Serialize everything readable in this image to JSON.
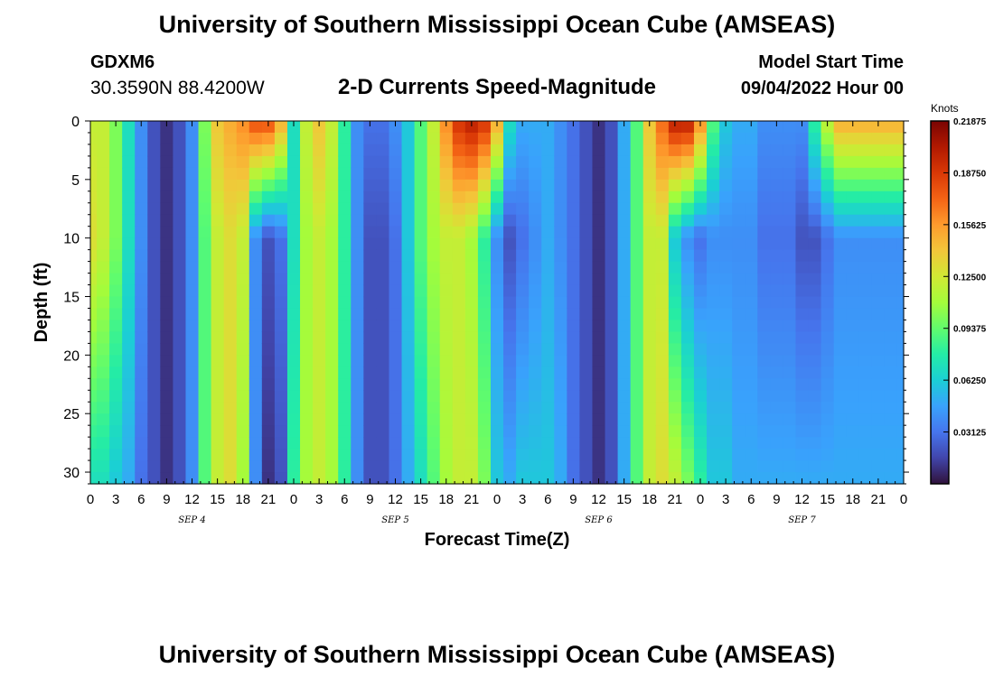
{
  "header": {
    "title": "University of Southern Mississippi Ocean Cube (AMSEAS)",
    "station_id": "GDXM6",
    "coords": "30.3590N  88.4200W",
    "subtitle": "2-D Currents Speed-Magnitude",
    "model_start_label": "Model Start Time",
    "model_start_value": "09/04/2022 Hour 00"
  },
  "footer": {
    "repeat_title": "University of Southern Mississippi Ocean Cube (AMSEAS)"
  },
  "chart_data": {
    "type": "heatmap",
    "title": "2-D Currents Speed-Magnitude",
    "xlabel": "Forecast Time(Z)",
    "ylabel": "Depth (ft)",
    "x_range_hours": [
      0,
      96
    ],
    "y_range_ft": [
      0,
      31
    ],
    "x_tick_labels": [
      "0",
      "3",
      "6",
      "9",
      "12",
      "15",
      "18",
      "21",
      "0",
      "3",
      "6",
      "9",
      "12",
      "15",
      "18",
      "21",
      "0",
      "3",
      "6",
      "9",
      "12",
      "15",
      "18",
      "21",
      "0",
      "3",
      "6",
      "9",
      "12",
      "15",
      "18",
      "21",
      "0"
    ],
    "y_ticks": [
      0,
      5,
      10,
      15,
      20,
      25,
      30
    ],
    "date_labels": [
      {
        "label": "SEP 4",
        "hour": 12
      },
      {
        "label": "SEP 5",
        "hour": 36
      },
      {
        "label": "SEP 6",
        "hour": 60
      },
      {
        "label": "SEP 7",
        "hour": 84
      }
    ],
    "colorbar": {
      "units": "Knots",
      "min": 0,
      "max": 0.21875,
      "tick_labels": [
        "0.21875",
        "0.18750",
        "0.15625",
        "0.12500",
        "0.09375",
        "0.06250",
        "0.03125"
      ],
      "tick_values": [
        0.21875,
        0.1875,
        0.15625,
        0.125,
        0.09375,
        0.0625,
        0.03125
      ],
      "colors": [
        "#30123b",
        "#4145ab",
        "#4675ed",
        "#39a2fc",
        "#1bcfd4",
        "#24eca6",
        "#61fc6c",
        "#a4fc3b",
        "#d1e834",
        "#f3c63a",
        "#fe9b2d",
        "#f36315",
        "#d93806",
        "#b11901",
        "#7a0403"
      ]
    },
    "speed_profile": {
      "description": "Approximate depth-column speed (knots) sampled every 1.5 forecast hours at surface (0 ft), mid (~10 ft) and bottom (~30 ft)",
      "hours": [
        0,
        1.5,
        3,
        4.5,
        6,
        7.5,
        9,
        10.5,
        12,
        13.5,
        15,
        16.5,
        18,
        19.5,
        21,
        22.5,
        24,
        25.5,
        27,
        28.5,
        30,
        31.5,
        33,
        34.5,
        36,
        37.5,
        39,
        40.5,
        42,
        43.5,
        45,
        46.5,
        48,
        49.5,
        51,
        52.5,
        54,
        55.5,
        57,
        58.5,
        60,
        61.5,
        63,
        64.5,
        66,
        67.5,
        69,
        70.5,
        72,
        73.5,
        75,
        76.5,
        78,
        79.5,
        81,
        82.5,
        84,
        85.5,
        87,
        88.5,
        90,
        91.5,
        93,
        94.5,
        96
      ],
      "surface": [
        0.12,
        0.12,
        0.1,
        0.07,
        0.04,
        0.02,
        0.01,
        0.02,
        0.04,
        0.1,
        0.14,
        0.15,
        0.16,
        0.18,
        0.18,
        0.15,
        0.07,
        0.12,
        0.14,
        0.12,
        0.08,
        0.04,
        0.03,
        0.03,
        0.04,
        0.06,
        0.09,
        0.12,
        0.16,
        0.19,
        0.2,
        0.19,
        0.15,
        0.07,
        0.05,
        0.05,
        0.05,
        0.04,
        0.03,
        0.02,
        0.01,
        0.02,
        0.05,
        0.09,
        0.14,
        0.17,
        0.2,
        0.2,
        0.16,
        0.09,
        0.06,
        0.05,
        0.05,
        0.04,
        0.04,
        0.04,
        0.04,
        0.08,
        0.12,
        0.15,
        0.15,
        0.15,
        0.15,
        0.15,
        0.15
      ],
      "mid": [
        0.13,
        0.12,
        0.1,
        0.07,
        0.04,
        0.02,
        0.01,
        0.02,
        0.04,
        0.09,
        0.12,
        0.13,
        0.12,
        0.04,
        0.02,
        0.03,
        0.07,
        0.11,
        0.12,
        0.11,
        0.08,
        0.04,
        0.02,
        0.02,
        0.03,
        0.06,
        0.09,
        0.11,
        0.12,
        0.12,
        0.11,
        0.08,
        0.04,
        0.02,
        0.03,
        0.04,
        0.05,
        0.04,
        0.03,
        0.02,
        0.01,
        0.02,
        0.05,
        0.09,
        0.12,
        0.12,
        0.06,
        0.04,
        0.03,
        0.04,
        0.04,
        0.04,
        0.04,
        0.03,
        0.03,
        0.03,
        0.02,
        0.02,
        0.03,
        0.04,
        0.04,
        0.04,
        0.04,
        0.04,
        0.04
      ],
      "bottom": [
        0.07,
        0.07,
        0.06,
        0.05,
        0.03,
        0.02,
        0.01,
        0.02,
        0.04,
        0.09,
        0.12,
        0.13,
        0.11,
        0.04,
        0.01,
        0.02,
        0.08,
        0.11,
        0.12,
        0.11,
        0.08,
        0.04,
        0.02,
        0.02,
        0.03,
        0.05,
        0.07,
        0.09,
        0.11,
        0.12,
        0.12,
        0.1,
        0.06,
        0.05,
        0.06,
        0.06,
        0.06,
        0.05,
        0.03,
        0.02,
        0.01,
        0.02,
        0.05,
        0.09,
        0.12,
        0.13,
        0.12,
        0.1,
        0.08,
        0.06,
        0.06,
        0.05,
        0.05,
        0.05,
        0.05,
        0.05,
        0.05,
        0.05,
        0.05,
        0.05,
        0.05,
        0.05,
        0.05,
        0.05,
        0.05
      ]
    }
  }
}
